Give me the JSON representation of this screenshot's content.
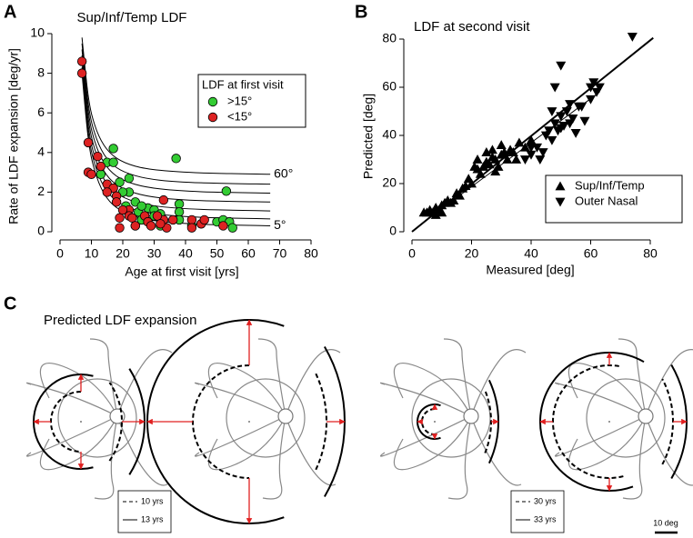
{
  "chart_data": [
    {
      "type": "scatter",
      "panel_label": "A",
      "title": "Sup/Inf/Temp LDF",
      "xlabel": "Age at first visit [yrs]",
      "ylabel": "Rate of LDF expansion [deg/yr]",
      "xlim": [
        0,
        80
      ],
      "ylim": [
        0,
        10
      ],
      "xticks": [
        0,
        10,
        20,
        30,
        40,
        50,
        60,
        70,
        80
      ],
      "yticks": [
        0,
        2,
        4,
        6,
        8,
        10
      ],
      "legend_title": "LDF at first visit",
      "legend_position": "right",
      "series": [
        {
          "name": ">15°",
          "color": "#33cc33",
          "marker": "circle",
          "x": [
            13,
            15,
            17,
            17,
            19,
            16,
            22,
            22,
            21,
            24,
            25,
            26,
            28,
            28,
            30,
            30,
            32,
            32,
            37,
            38,
            38,
            38,
            42,
            50,
            52,
            53,
            54,
            55,
            24,
            20,
            26,
            45
          ],
          "values": [
            2.9,
            3.5,
            3.5,
            4.2,
            2.5,
            2.2,
            2.7,
            2.0,
            1.3,
            1.5,
            1.0,
            0.6,
            1.2,
            0.5,
            1.1,
            0.8,
            0.9,
            0.3,
            3.7,
            1.4,
            1.0,
            0.6,
            0.3,
            0.5,
            0.6,
            2.05,
            0.5,
            0.2,
            0.3,
            2.0,
            1.3,
            0.4
          ]
        },
        {
          "name": "<15°",
          "color": "#dd2222",
          "marker": "circle",
          "x": [
            7,
            7,
            9,
            9,
            10,
            12,
            13,
            15,
            17,
            18,
            18,
            19,
            19,
            22,
            22,
            23,
            24,
            27,
            28,
            29,
            33,
            33,
            34,
            36,
            42,
            42,
            45,
            46,
            52,
            15,
            20,
            31,
            32
          ],
          "values": [
            8.6,
            8.0,
            4.5,
            3.0,
            2.9,
            3.8,
            3.3,
            2.4,
            2.2,
            1.8,
            1.5,
            0.7,
            0.2,
            1.1,
            0.8,
            0.7,
            0.3,
            0.8,
            0.5,
            0.3,
            1.6,
            0.6,
            0.2,
            0.6,
            0.6,
            0.2,
            0.4,
            0.6,
            0.3,
            2.0,
            1.1,
            0.8,
            0.4
          ]
        }
      ],
      "curves": {
        "color": "#000000",
        "x": [
          7,
          9,
          11,
          14,
          18,
          24,
          32,
          45,
          67
        ],
        "lines": [
          [
            9.8,
            6.85,
            5.42,
            4.37,
            3.72,
            3.31,
            3.1,
            2.97,
            2.9
          ],
          [
            9.5,
            6.46,
            5.0,
            3.91,
            3.24,
            2.83,
            2.6,
            2.47,
            2.4
          ],
          [
            9.2,
            6.1,
            4.6,
            3.49,
            2.81,
            2.39,
            2.16,
            2.02,
            1.95
          ],
          [
            8.9,
            5.73,
            4.21,
            3.07,
            2.38,
            1.95,
            1.71,
            1.57,
            1.5
          ],
          [
            8.6,
            5.37,
            3.81,
            2.66,
            1.95,
            1.51,
            1.27,
            1.13,
            1.05
          ],
          [
            8.3,
            5.03,
            3.45,
            2.28,
            1.56,
            1.11,
            0.87,
            0.73,
            0.65
          ],
          [
            8.0,
            4.71,
            3.12,
            1.94,
            1.22,
            0.77,
            0.52,
            0.38,
            0.3
          ]
        ]
      },
      "curve_labels": {
        "top": "60°",
        "bottom": "5°"
      }
    },
    {
      "type": "scatter",
      "panel_label": "B",
      "title": "LDF at second visit",
      "xlabel": "Measured [deg]",
      "ylabel": "Predicted [deg]",
      "xlim": [
        0,
        80
      ],
      "ylim": [
        0,
        80
      ],
      "xticks": [
        0,
        20,
        40,
        60,
        80
      ],
      "yticks": [
        0,
        20,
        40,
        60,
        80
      ],
      "legend_position": "lower right",
      "series": [
        {
          "name": "Sup/Inf/Temp",
          "color": "#000000",
          "marker": "triangle-up",
          "x": [
            4,
            5,
            6,
            7,
            8,
            8,
            9,
            10,
            10,
            11,
            12,
            13,
            14,
            15,
            16,
            17,
            18,
            19,
            20,
            21,
            22,
            22,
            23,
            24,
            25,
            25,
            26,
            27,
            27,
            28,
            28,
            29,
            30,
            30,
            31,
            32,
            33,
            34,
            35,
            36,
            38,
            40
          ],
          "values": [
            8,
            8,
            9,
            8,
            10,
            7,
            9,
            11,
            8,
            12,
            13,
            12,
            13,
            16,
            15,
            18,
            19,
            22,
            20,
            27,
            30,
            26,
            24,
            27,
            29,
            33,
            28,
            31,
            34,
            30,
            25,
            27,
            36,
            32,
            33,
            30,
            34,
            33,
            30,
            37,
            35,
            38
          ]
        },
        {
          "name": "Outer Nasal",
          "color": "#000000",
          "marker": "triangle-down",
          "x": [
            38,
            40,
            40,
            42,
            43,
            44,
            45,
            46,
            47,
            48,
            49,
            50,
            50,
            51,
            52,
            53,
            54,
            55,
            56,
            57,
            58,
            60,
            60,
            61,
            62,
            63,
            47,
            53,
            74,
            50,
            48
          ],
          "values": [
            30,
            35,
            32,
            35,
            30,
            33,
            40,
            42,
            38,
            45,
            42,
            48,
            43,
            44,
            50,
            45,
            47,
            41,
            52,
            52,
            46,
            60,
            55,
            62,
            58,
            60,
            50,
            53,
            81,
            69,
            60
          ]
        }
      ],
      "fit_lines": [
        {
          "color": "#000000",
          "width": 2,
          "x": [
            0,
            81
          ],
          "values": [
            0,
            80.5
          ]
        },
        {
          "color": "#000000",
          "width": 1,
          "x": [
            5,
            63
          ],
          "values": [
            5,
            58
          ]
        }
      ]
    }
  ],
  "panel_c": {
    "panel_label": "C",
    "title": "Predicted LDF expansion",
    "legends": [
      {
        "dashed": "10 yrs",
        "solid": "13 yrs"
      },
      {
        "dashed": "30 yrs",
        "solid": "33 yrs"
      }
    ],
    "scale_bar": "10 deg"
  }
}
